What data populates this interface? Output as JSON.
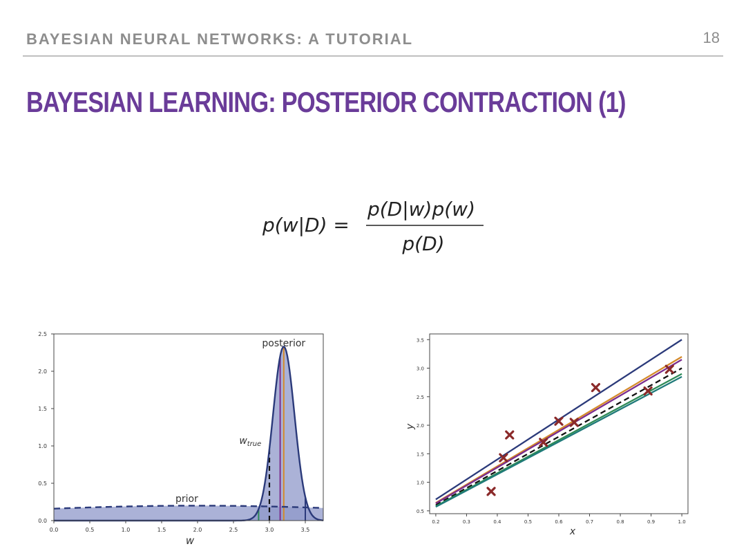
{
  "header": {
    "title": "BAYESIAN NEURAL NETWORKS: A TUTORIAL",
    "page_number": "18"
  },
  "slide": {
    "title": "BAYESIAN LEARNING: POSTERIOR CONTRACTION (1)"
  },
  "formula": {
    "lhs": "p(w|D) =",
    "numerator": "p(D|w)p(w)",
    "denominator": "p(D)"
  },
  "chart_data": [
    {
      "type": "area",
      "xlabel": "w",
      "ylabel": "",
      "xlim": [
        0,
        3.75
      ],
      "ylim": [
        0,
        2.5
      ],
      "xticks": [
        "0.0",
        "0.5",
        "1.0",
        "1.5",
        "2.0",
        "2.5",
        "3.0",
        "3.5"
      ],
      "yticks": [
        "0.0",
        "0.5",
        "1.0",
        "1.5",
        "2.0",
        "2.5"
      ],
      "annotations": {
        "posterior": "posterior",
        "prior": "prior",
        "w_true": "w",
        "w_true_sub": "true"
      },
      "prior": {
        "mean": 2.0,
        "peak": 0.2,
        "sigma": 3.0
      },
      "posterior": {
        "mean": 3.2,
        "peak": 2.33,
        "sigma": 0.15
      },
      "w_true": 3.0,
      "samples": [
        {
          "x": 2.85,
          "color": "#2e8b57"
        },
        {
          "x": 3.15,
          "color": "#7b2d8e"
        },
        {
          "x": 3.2,
          "color": "#d48a2a"
        },
        {
          "x": 3.5,
          "color": "#2b3a7a"
        }
      ],
      "grid": false
    },
    {
      "type": "scatter",
      "xlabel": "x",
      "ylabel": "y",
      "xlim": [
        0.18,
        1.02
      ],
      "ylim": [
        0.45,
        3.6
      ],
      "xticks": [
        "0.2",
        "0.3",
        "0.4",
        "0.5",
        "0.6",
        "0.7",
        "0.8",
        "0.9",
        "1.0"
      ],
      "yticks": [
        "0.5",
        "1.0",
        "1.5",
        "2.0",
        "2.5",
        "3.0",
        "3.5"
      ],
      "points": [
        {
          "x": 0.38,
          "y": 0.84
        },
        {
          "x": 0.42,
          "y": 1.43
        },
        {
          "x": 0.44,
          "y": 1.83
        },
        {
          "x": 0.55,
          "y": 1.7
        },
        {
          "x": 0.6,
          "y": 2.07
        },
        {
          "x": 0.65,
          "y": 2.05
        },
        {
          "x": 0.72,
          "y": 2.66
        },
        {
          "x": 0.89,
          "y": 2.6
        },
        {
          "x": 0.96,
          "y": 2.98
        }
      ],
      "lines": [
        {
          "slope": 3.5,
          "color": "#2b3a7a",
          "dash": false
        },
        {
          "slope": 3.2,
          "color": "#d48a2a",
          "dash": false
        },
        {
          "slope": 3.15,
          "color": "#7b2d8e",
          "dash": false
        },
        {
          "slope": 3.0,
          "color": "#111111",
          "dash": true
        },
        {
          "slope": 2.9,
          "color": "#2e8b57",
          "dash": false
        },
        {
          "slope": 2.85,
          "color": "#1f7a7a",
          "dash": false
        }
      ],
      "grid": false
    }
  ]
}
